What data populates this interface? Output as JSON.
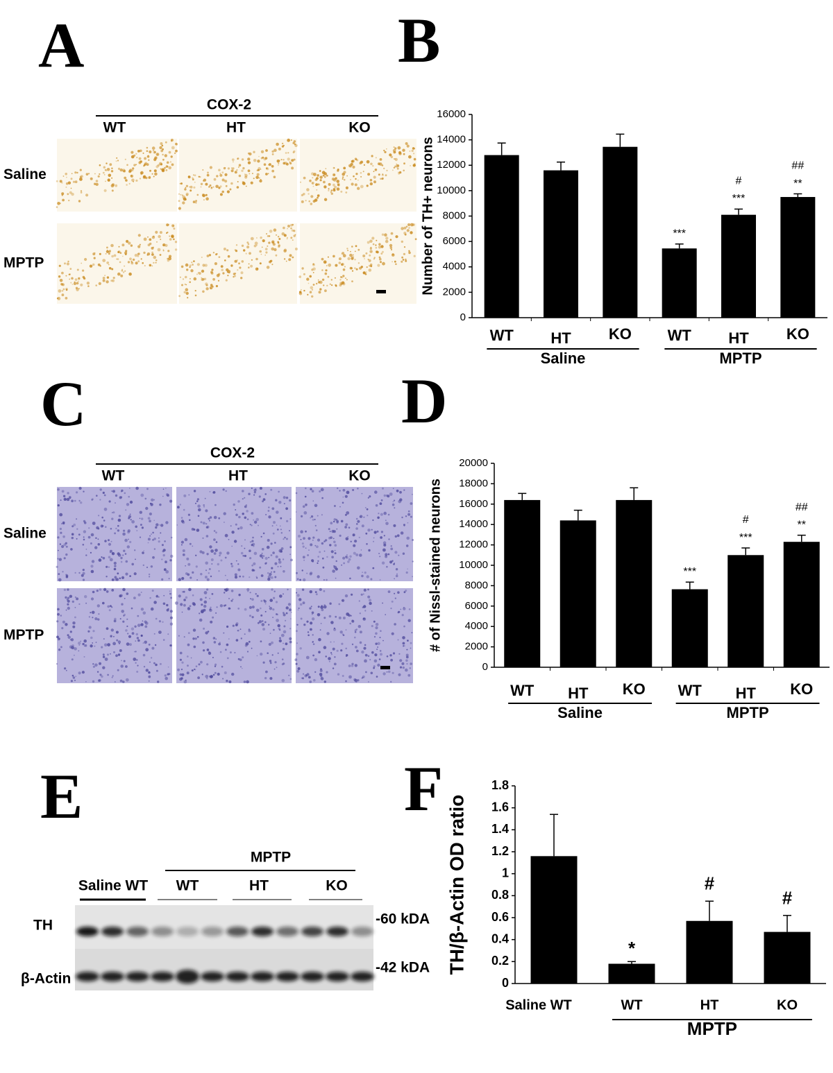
{
  "panel_letters": [
    "A",
    "B",
    "C",
    "D",
    "E",
    "F"
  ],
  "panel_a": {
    "header": "COX-2",
    "columns": [
      "WT",
      "HT",
      "KO"
    ],
    "rows": [
      "Saline",
      "MPTP"
    ]
  },
  "panel_c": {
    "header": "COX-2",
    "columns": [
      "WT",
      "HT",
      "KO"
    ],
    "rows": [
      "Saline",
      "MPTP"
    ]
  },
  "panel_e": {
    "header": "MPTP",
    "lane_groups": [
      "Saline WT",
      "WT",
      "HT",
      "KO"
    ],
    "rows": [
      "TH",
      "β-Actin"
    ],
    "markers": [
      "-60 kDA",
      "-42 kDA"
    ]
  },
  "chart_data": [
    {
      "type": "bar",
      "y_label": "Number of TH+ neurons",
      "ylim": [
        0,
        16000
      ],
      "yticks": [
        0,
        2000,
        4000,
        6000,
        8000,
        10000,
        12000,
        14000,
        16000
      ],
      "color": "#000000",
      "groups": [
        {
          "name": "Saline",
          "categories": [
            "WT",
            "HT",
            "KO"
          ],
          "values": [
            12800,
            11600,
            13450
          ],
          "errors": [
            950,
            650,
            1000
          ]
        },
        {
          "name": "MPTP",
          "categories": [
            "WT",
            "HT",
            "KO"
          ],
          "values": [
            5450,
            8100,
            9500
          ],
          "errors": [
            350,
            450,
            250
          ],
          "sig_vs_saline": [
            "***",
            "***",
            "**"
          ],
          "sig_vs_wt": [
            null,
            "#",
            "##"
          ]
        }
      ]
    },
    {
      "type": "bar",
      "y_label": "# of Nissl-stained neurons",
      "ylim": [
        0,
        20000
      ],
      "yticks": [
        0,
        2000,
        4000,
        6000,
        8000,
        10000,
        12000,
        14000,
        16000,
        18000,
        20000
      ],
      "color": "#000000",
      "groups": [
        {
          "name": "Saline",
          "categories": [
            "WT",
            "HT",
            "KO"
          ],
          "values": [
            16400,
            14400,
            16400
          ],
          "errors": [
            650,
            1000,
            1200
          ]
        },
        {
          "name": "MPTP",
          "categories": [
            "WT",
            "HT",
            "KO"
          ],
          "values": [
            7650,
            11000,
            12300
          ],
          "errors": [
            700,
            700,
            650
          ],
          "sig_vs_saline": [
            "***",
            "***",
            "**"
          ],
          "sig_vs_wt": [
            null,
            "#",
            "##"
          ]
        }
      ]
    },
    {
      "type": "bar",
      "y_label": "TH/β-Actin OD ratio",
      "ylim": [
        0,
        1.8
      ],
      "yticks": [
        0,
        0.2,
        0.4,
        0.6,
        0.8,
        1,
        1.2,
        1.4,
        1.6,
        1.8
      ],
      "color": "#000000",
      "groups": [
        {
          "categories": [
            "Saline WT"
          ],
          "values": [
            1.16
          ],
          "errors": [
            0.38
          ]
        },
        {
          "name": "MPTP",
          "categories": [
            "WT",
            "HT",
            "KO"
          ],
          "values": [
            0.18,
            0.57,
            0.47
          ],
          "errors": [
            0.02,
            0.18,
            0.15
          ],
          "sig_vs_saline": [
            "*",
            null,
            null
          ],
          "sig_vs_wt": [
            null,
            "#",
            "#"
          ]
        }
      ]
    }
  ]
}
